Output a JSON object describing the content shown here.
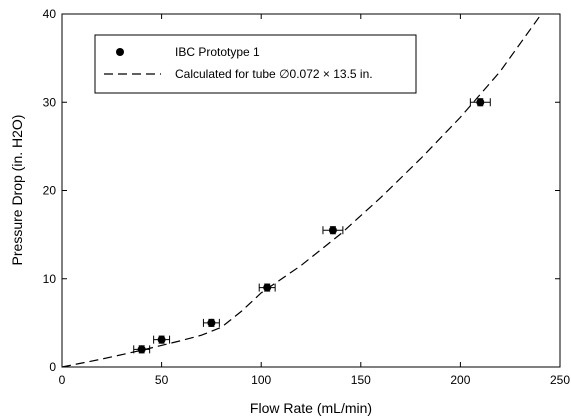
{
  "chart_data": {
    "type": "scatter",
    "title": "",
    "xlabel": "Flow Rate (mL/min)",
    "ylabel": "Pressure Drop (in. H2O)",
    "xlim": [
      0,
      250
    ],
    "ylim": [
      0,
      40
    ],
    "xticks": [
      0,
      50,
      100,
      150,
      200,
      250
    ],
    "yticks": [
      0,
      10,
      20,
      30,
      40
    ],
    "xtick_labels": [
      "0",
      "50",
      "100",
      "150",
      "200",
      "250"
    ],
    "ytick_labels": [
      "0",
      "10",
      "20",
      "30",
      "40"
    ],
    "grid": false,
    "legend_position": "top-left",
    "series": [
      {
        "name": "IBC Prototype 1",
        "kind": "points",
        "marker": "filled-circle",
        "color": "#000000",
        "x": [
          40,
          50,
          75,
          103,
          136,
          210
        ],
        "y": [
          2.0,
          3.1,
          5.0,
          9.0,
          15.5,
          30.0
        ],
        "x_error": [
          4,
          4,
          4,
          4,
          5,
          5
        ],
        "y_error": [
          0.4,
          0.4,
          0.4,
          0.4,
          0.4,
          0.4
        ]
      },
      {
        "name": "Calculated for tube ∅0.072 × 13.5 in.",
        "kind": "dashed-line",
        "color": "#000000",
        "x": [
          0,
          20,
          40,
          60,
          70,
          80,
          90,
          100,
          120,
          140,
          160,
          180,
          200,
          220,
          240
        ],
        "y": [
          0,
          0.9,
          1.9,
          3.0,
          3.6,
          4.5,
          6.3,
          8.4,
          11.5,
          15.1,
          19.2,
          23.6,
          28.3,
          33.5,
          39.8
        ]
      }
    ]
  }
}
